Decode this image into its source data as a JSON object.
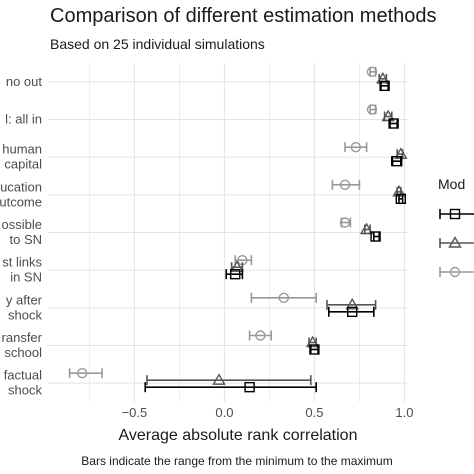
{
  "chart_data": {
    "type": "scatter",
    "title": "Comparison of different estimation methods",
    "subtitle": "Based on 25 individual simulations",
    "xlabel": "Average absolute rank correlation",
    "caption": "Bars indicate the range from the minimum to the maximum",
    "xlim": [
      -0.98,
      1.02
    ],
    "xticks": [
      -0.5,
      0.0,
      0.5,
      1.0
    ],
    "xtick_labels": [
      "−0.5",
      "0.0",
      "0.5",
      "1.0"
    ],
    "grid": true,
    "legend_title": "Mod",
    "legend_placement": "right",
    "categories": [
      [
        "no out"
      ],
      [
        "l: all in"
      ],
      [
        "human",
        "capital"
      ],
      [
        "ucation",
        "utcome"
      ],
      [
        "ossible",
        "to SN"
      ],
      [
        "st links",
        "in SN"
      ],
      [
        "y after",
        "shock"
      ],
      [
        "ransfer",
        "school"
      ],
      [
        "factual",
        "shock"
      ]
    ],
    "series": [
      {
        "marker": "square",
        "color": "#000000",
        "points": [
          {
            "mean": 0.89,
            "min": 0.87,
            "max": 0.91
          },
          {
            "mean": 0.94,
            "min": 0.92,
            "max": 0.96
          },
          {
            "mean": 0.96,
            "min": 0.93,
            "max": 0.98
          },
          {
            "mean": 0.98,
            "min": 0.97,
            "max": 0.99
          },
          {
            "mean": 0.84,
            "min": 0.83,
            "max": 0.86
          },
          {
            "mean": 0.06,
            "min": 0.01,
            "max": 0.1
          },
          {
            "mean": 0.71,
            "min": 0.58,
            "max": 0.83
          },
          {
            "mean": 0.5,
            "min": 0.48,
            "max": 0.52
          },
          {
            "mean": 0.14,
            "min": -0.44,
            "max": 0.51
          }
        ]
      },
      {
        "marker": "triangle",
        "color": "#555555",
        "points": [
          {
            "mean": 0.88,
            "min": 0.86,
            "max": 0.9
          },
          {
            "mean": 0.91,
            "min": 0.89,
            "max": 0.93
          },
          {
            "mean": 0.98,
            "min": 0.96,
            "max": 0.99
          },
          {
            "mean": 0.97,
            "min": 0.96,
            "max": 0.98
          },
          {
            "mean": 0.79,
            "min": 0.78,
            "max": 0.81
          },
          {
            "mean": 0.07,
            "min": 0.04,
            "max": 0.1
          },
          {
            "mean": 0.71,
            "min": 0.57,
            "max": 0.84
          },
          {
            "mean": 0.49,
            "min": 0.47,
            "max": 0.51
          },
          {
            "mean": -0.03,
            "min": -0.43,
            "max": 0.48
          }
        ]
      },
      {
        "marker": "circle",
        "color": "#999999",
        "points": [
          {
            "mean": 0.82,
            "min": 0.81,
            "max": 0.84
          },
          {
            "mean": 0.82,
            "min": 0.81,
            "max": 0.84
          },
          {
            "mean": 0.73,
            "min": 0.67,
            "max": 0.79
          },
          {
            "mean": 0.67,
            "min": 0.6,
            "max": 0.75
          },
          {
            "mean": 0.67,
            "min": 0.65,
            "max": 0.7
          },
          {
            "mean": 0.1,
            "min": 0.06,
            "max": 0.15
          },
          {
            "mean": 0.33,
            "min": 0.15,
            "max": 0.51
          },
          {
            "mean": 0.2,
            "min": 0.14,
            "max": 0.26
          },
          {
            "mean": -0.79,
            "min": -0.86,
            "max": -0.68
          }
        ]
      }
    ]
  }
}
